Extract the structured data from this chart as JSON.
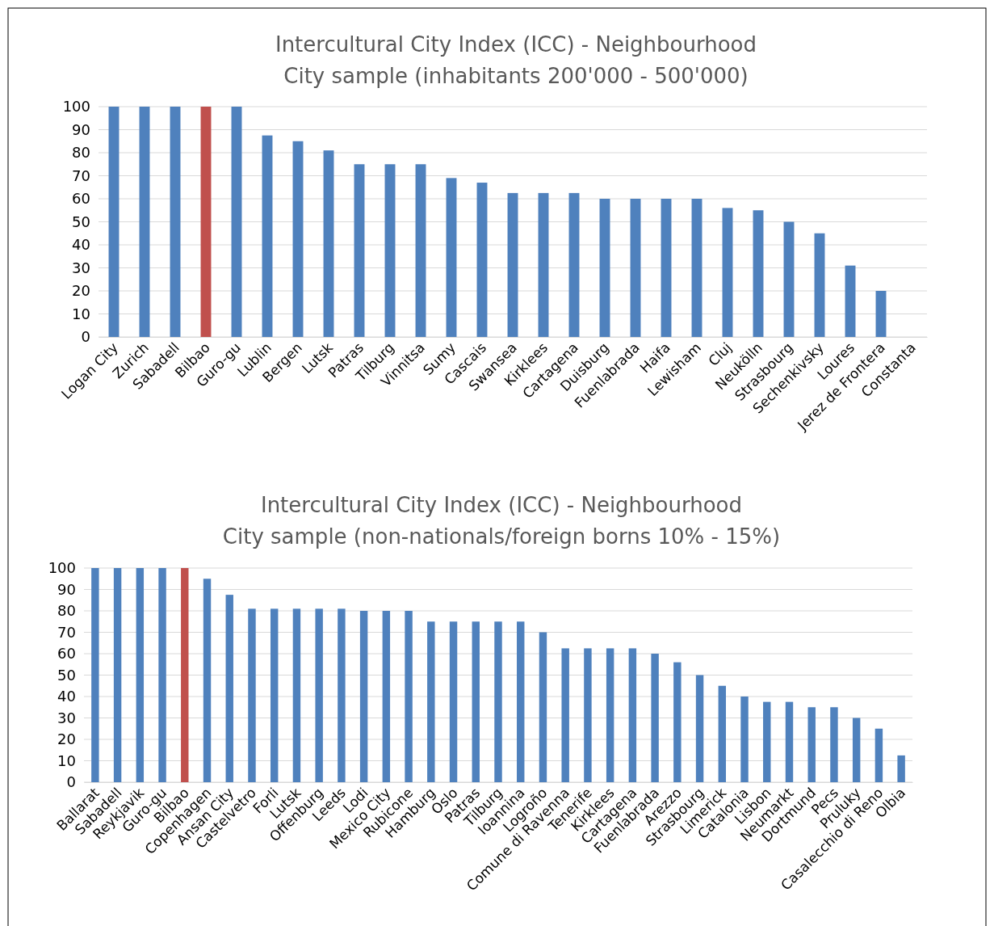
{
  "chart_data": [
    {
      "type": "bar",
      "title": "Intercultural City Index (ICC) - Neighbourhood",
      "subtitle": "City sample (inhabitants 200'000 - 500'000)",
      "categories": [
        "Logan City",
        "Zurich",
        "Sabadell",
        "Bilbao",
        "Guro-gu",
        "Lublin",
        "Bergen",
        "Lutsk",
        "Patras",
        "Tilburg",
        "Vinnitsa",
        "Sumy",
        "Cascais",
        "Swansea",
        "Kirklees",
        "Cartagena",
        "Duisburg",
        "Fuenlabrada",
        "Haifa",
        "Lewisham",
        "Cluj",
        "Neukölln",
        "Strasbourg",
        "Sechenkivsky",
        "Loures",
        "Jerez de Frontera",
        "Constanta"
      ],
      "values": [
        100,
        100,
        100,
        100,
        100,
        87.5,
        85,
        81,
        75,
        75,
        75,
        69,
        67,
        62.5,
        62.5,
        62.5,
        60,
        60,
        60,
        60,
        56,
        55,
        50,
        45,
        31,
        20,
        0
      ],
      "colors": [
        "#4f81bd",
        "#4f81bd",
        "#4f81bd",
        "#c0504d",
        "#4f81bd",
        "#4f81bd",
        "#4f81bd",
        "#4f81bd",
        "#4f81bd",
        "#4f81bd",
        "#4f81bd",
        "#4f81bd",
        "#4f81bd",
        "#4f81bd",
        "#4f81bd",
        "#4f81bd",
        "#4f81bd",
        "#4f81bd",
        "#4f81bd",
        "#4f81bd",
        "#4f81bd",
        "#4f81bd",
        "#4f81bd",
        "#4f81bd",
        "#4f81bd",
        "#4f81bd",
        "#4f81bd"
      ],
      "ylim": [
        0,
        100
      ],
      "yticks": [
        0,
        10,
        20,
        30,
        40,
        50,
        60,
        70,
        80,
        90,
        100
      ],
      "grid": "y",
      "legend": false
    },
    {
      "type": "bar",
      "title": "Intercultural City Index (ICC) - Neighbourhood",
      "subtitle": "City sample (non-nationals/foreign borns 10% - 15%)",
      "categories": [
        "Ballarat",
        "Sabadell",
        "Reykjavik",
        "Guro-gu",
        "Bilbao",
        "Copenhagen",
        "Ansan City",
        "Castelvetro",
        "Forli",
        "Lutsk",
        "Offenburg",
        "Leeds",
        "Lodi",
        "Mexico City",
        "Rubicone",
        "Hamburg",
        "Oslo",
        "Patras",
        "Tilburg",
        "Ioannina",
        "Logroño",
        "Comune di Ravenna",
        "Tenerife",
        "Kirklees",
        "Cartagena",
        "Fuenlabrada",
        "Arezzo",
        "Strasbourg",
        "Limerick",
        "Catalonia",
        "Lisbon",
        "Neumarkt",
        "Dortmund",
        "Pecs",
        "Pruluky",
        "Casalecchio di Reno",
        "Olbia"
      ],
      "values": [
        100,
        100,
        100,
        100,
        100,
        95,
        87.5,
        81,
        81,
        81,
        81,
        81,
        80,
        80,
        80,
        75,
        75,
        75,
        75,
        75,
        70,
        62.5,
        62.5,
        62.5,
        62.5,
        60,
        56,
        50,
        45,
        40,
        37.5,
        37.5,
        35,
        35,
        30,
        25,
        12.5
      ],
      "colors": [
        "#4f81bd",
        "#4f81bd",
        "#4f81bd",
        "#4f81bd",
        "#c0504d",
        "#4f81bd",
        "#4f81bd",
        "#4f81bd",
        "#4f81bd",
        "#4f81bd",
        "#4f81bd",
        "#4f81bd",
        "#4f81bd",
        "#4f81bd",
        "#4f81bd",
        "#4f81bd",
        "#4f81bd",
        "#4f81bd",
        "#4f81bd",
        "#4f81bd",
        "#4f81bd",
        "#4f81bd",
        "#4f81bd",
        "#4f81bd",
        "#4f81bd",
        "#4f81bd",
        "#4f81bd",
        "#4f81bd",
        "#4f81bd",
        "#4f81bd",
        "#4f81bd",
        "#4f81bd",
        "#4f81bd",
        "#4f81bd",
        "#4f81bd",
        "#4f81bd",
        "#4f81bd"
      ],
      "ylim": [
        0,
        100
      ],
      "yticks": [
        0,
        10,
        20,
        30,
        40,
        50,
        60,
        70,
        80,
        90,
        100
      ],
      "grid": "y",
      "legend": false
    }
  ]
}
